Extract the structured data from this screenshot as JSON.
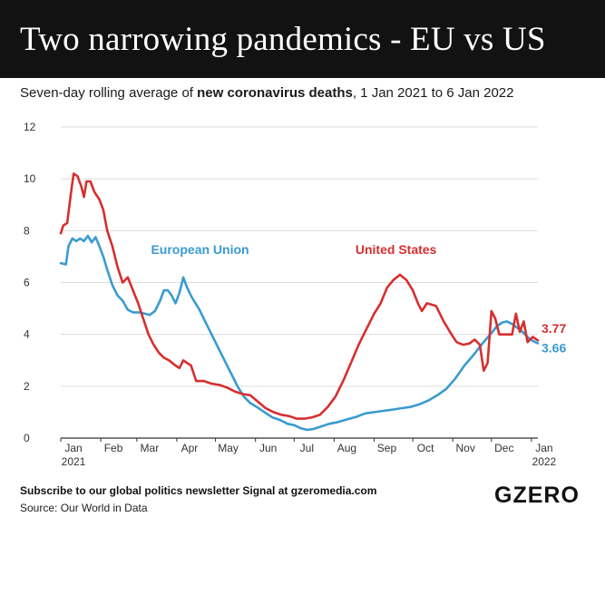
{
  "header": {
    "title": "Two narrowing pandemics - EU vs US"
  },
  "subtitle": {
    "prefix": "Seven-day rolling average of ",
    "bold": "new coronavirus deaths",
    "suffix": ", 1 Jan 2021 to 6 Jan 2022"
  },
  "footer": {
    "note": "Subscribe to our global politics newsletter Signal at gzeromedia.com",
    "source": "Source: Our World in Data",
    "logo": "GZERO"
  },
  "colors": {
    "eu": "#3a9bd0",
    "us": "#d62f2f",
    "grid": "#dcdcdc",
    "axis": "#333333"
  },
  "chart_data": {
    "type": "line",
    "title": "Two narrowing pandemics - EU vs US",
    "xlabel": "",
    "ylabel": "",
    "xlim": [
      "2021-01-01",
      "2022-01-06"
    ],
    "ylim": [
      0,
      12
    ],
    "yticks": [
      0,
      2,
      4,
      6,
      8,
      10,
      12
    ],
    "xticks": [
      {
        "date": "2021-01-01",
        "label": "Jan",
        "sublabel": "2021"
      },
      {
        "date": "2021-02-01",
        "label": "Feb"
      },
      {
        "date": "2021-03-01",
        "label": "Mar"
      },
      {
        "date": "2021-04-01",
        "label": "Apr"
      },
      {
        "date": "2021-05-01",
        "label": "May"
      },
      {
        "date": "2021-06-01",
        "label": "Jun"
      },
      {
        "date": "2021-07-01",
        "label": "Jul"
      },
      {
        "date": "2021-08-01",
        "label": "Aug"
      },
      {
        "date": "2021-09-01",
        "label": "Sep"
      },
      {
        "date": "2021-10-01",
        "label": "Oct"
      },
      {
        "date": "2021-11-01",
        "label": "Nov"
      },
      {
        "date": "2021-12-01",
        "label": "Dec"
      },
      {
        "date": "2022-01-01",
        "label": "Jan",
        "sublabel": "2022"
      }
    ],
    "grid": true,
    "series": [
      {
        "name": "European Union",
        "color": "#3a9bd0",
        "end_label": "3.66",
        "points": [
          [
            "2021-01-01",
            6.75
          ],
          [
            "2021-01-05",
            6.7
          ],
          [
            "2021-01-07",
            7.4
          ],
          [
            "2021-01-10",
            7.7
          ],
          [
            "2021-01-13",
            7.6
          ],
          [
            "2021-01-16",
            7.7
          ],
          [
            "2021-01-19",
            7.6
          ],
          [
            "2021-01-22",
            7.8
          ],
          [
            "2021-01-25",
            7.55
          ],
          [
            "2021-01-28",
            7.75
          ],
          [
            "2021-01-31",
            7.4
          ],
          [
            "2021-02-03",
            7.0
          ],
          [
            "2021-02-06",
            6.5
          ],
          [
            "2021-02-10",
            5.9
          ],
          [
            "2021-02-14",
            5.5
          ],
          [
            "2021-02-18",
            5.3
          ],
          [
            "2021-02-22",
            4.95
          ],
          [
            "2021-02-26",
            4.85
          ],
          [
            "2021-03-03",
            4.85
          ],
          [
            "2021-03-07",
            4.8
          ],
          [
            "2021-03-11",
            4.75
          ],
          [
            "2021-03-15",
            4.9
          ],
          [
            "2021-03-19",
            5.3
          ],
          [
            "2021-03-22",
            5.7
          ],
          [
            "2021-03-25",
            5.7
          ],
          [
            "2021-03-28",
            5.5
          ],
          [
            "2021-03-31",
            5.2
          ],
          [
            "2021-04-03",
            5.6
          ],
          [
            "2021-04-06",
            6.2
          ],
          [
            "2021-04-09",
            5.8
          ],
          [
            "2021-04-13",
            5.4
          ],
          [
            "2021-04-18",
            5.0
          ],
          [
            "2021-04-23",
            4.5
          ],
          [
            "2021-04-28",
            4.0
          ],
          [
            "2021-05-03",
            3.5
          ],
          [
            "2021-05-08",
            3.0
          ],
          [
            "2021-05-13",
            2.5
          ],
          [
            "2021-05-18",
            2.0
          ],
          [
            "2021-05-23",
            1.6
          ],
          [
            "2021-05-28",
            1.35
          ],
          [
            "2021-06-02",
            1.2
          ],
          [
            "2021-06-08",
            1.0
          ],
          [
            "2021-06-14",
            0.8
          ],
          [
            "2021-06-20",
            0.7
          ],
          [
            "2021-06-26",
            0.55
          ],
          [
            "2021-07-01",
            0.5
          ],
          [
            "2021-07-06",
            0.38
          ],
          [
            "2021-07-11",
            0.32
          ],
          [
            "2021-07-16",
            0.35
          ],
          [
            "2021-07-22",
            0.45
          ],
          [
            "2021-07-28",
            0.55
          ],
          [
            "2021-08-04",
            0.62
          ],
          [
            "2021-08-11",
            0.72
          ],
          [
            "2021-08-18",
            0.82
          ],
          [
            "2021-08-25",
            0.95
          ],
          [
            "2021-09-01",
            1.0
          ],
          [
            "2021-09-08",
            1.05
          ],
          [
            "2021-09-15",
            1.1
          ],
          [
            "2021-09-22",
            1.15
          ],
          [
            "2021-09-29",
            1.2
          ],
          [
            "2021-10-06",
            1.3
          ],
          [
            "2021-10-13",
            1.45
          ],
          [
            "2021-10-20",
            1.65
          ],
          [
            "2021-10-27",
            1.9
          ],
          [
            "2021-11-03",
            2.3
          ],
          [
            "2021-11-10",
            2.8
          ],
          [
            "2021-11-17",
            3.2
          ],
          [
            "2021-11-24",
            3.65
          ],
          [
            "2021-12-01",
            4.05
          ],
          [
            "2021-12-05",
            4.3
          ],
          [
            "2021-12-09",
            4.45
          ],
          [
            "2021-12-13",
            4.5
          ],
          [
            "2021-12-17",
            4.4
          ],
          [
            "2021-12-21",
            4.25
          ],
          [
            "2021-12-25",
            4.1
          ],
          [
            "2021-12-29",
            3.9
          ],
          [
            "2022-01-02",
            3.75
          ],
          [
            "2022-01-06",
            3.66
          ]
        ]
      },
      {
        "name": "United States",
        "color": "#d62f2f",
        "end_label": "3.77",
        "points": [
          [
            "2021-01-01",
            7.9
          ],
          [
            "2021-01-03",
            8.2
          ],
          [
            "2021-01-06",
            8.3
          ],
          [
            "2021-01-09",
            9.5
          ],
          [
            "2021-01-11",
            10.2
          ],
          [
            "2021-01-14",
            10.1
          ],
          [
            "2021-01-17",
            9.7
          ],
          [
            "2021-01-19",
            9.3
          ],
          [
            "2021-01-21",
            9.9
          ],
          [
            "2021-01-24",
            9.9
          ],
          [
            "2021-01-27",
            9.5
          ],
          [
            "2021-01-31",
            9.2
          ],
          [
            "2021-02-03",
            8.8
          ],
          [
            "2021-02-06",
            8.0
          ],
          [
            "2021-02-10",
            7.4
          ],
          [
            "2021-02-14",
            6.6
          ],
          [
            "2021-02-18",
            6.0
          ],
          [
            "2021-02-22",
            6.2
          ],
          [
            "2021-02-26",
            5.7
          ],
          [
            "2021-03-02",
            5.2
          ],
          [
            "2021-03-06",
            4.6
          ],
          [
            "2021-03-10",
            4.0
          ],
          [
            "2021-03-14",
            3.6
          ],
          [
            "2021-03-18",
            3.3
          ],
          [
            "2021-03-22",
            3.1
          ],
          [
            "2021-03-26",
            3.0
          ],
          [
            "2021-03-31",
            2.8
          ],
          [
            "2021-04-03",
            2.7
          ],
          [
            "2021-04-06",
            3.0
          ],
          [
            "2021-04-12",
            2.8
          ],
          [
            "2021-04-16",
            2.2
          ],
          [
            "2021-04-22",
            2.2
          ],
          [
            "2021-04-28",
            2.1
          ],
          [
            "2021-05-04",
            2.05
          ],
          [
            "2021-05-10",
            1.95
          ],
          [
            "2021-05-16",
            1.8
          ],
          [
            "2021-05-22",
            1.7
          ],
          [
            "2021-05-28",
            1.65
          ],
          [
            "2021-06-03",
            1.4
          ],
          [
            "2021-06-09",
            1.15
          ],
          [
            "2021-06-15",
            1.0
          ],
          [
            "2021-06-21",
            0.9
          ],
          [
            "2021-06-27",
            0.85
          ],
          [
            "2021-07-03",
            0.75
          ],
          [
            "2021-07-09",
            0.75
          ],
          [
            "2021-07-15",
            0.8
          ],
          [
            "2021-07-21",
            0.9
          ],
          [
            "2021-07-27",
            1.2
          ],
          [
            "2021-08-02",
            1.6
          ],
          [
            "2021-08-08",
            2.2
          ],
          [
            "2021-08-14",
            2.9
          ],
          [
            "2021-08-20",
            3.6
          ],
          [
            "2021-08-26",
            4.2
          ],
          [
            "2021-09-01",
            4.8
          ],
          [
            "2021-09-06",
            5.2
          ],
          [
            "2021-09-11",
            5.8
          ],
          [
            "2021-09-16",
            6.1
          ],
          [
            "2021-09-21",
            6.3
          ],
          [
            "2021-09-26",
            6.1
          ],
          [
            "2021-10-01",
            5.7
          ],
          [
            "2021-10-05",
            5.2
          ],
          [
            "2021-10-08",
            4.9
          ],
          [
            "2021-10-12",
            5.2
          ],
          [
            "2021-10-19",
            5.1
          ],
          [
            "2021-10-25",
            4.5
          ],
          [
            "2021-10-31",
            4.0
          ],
          [
            "2021-11-04",
            3.7
          ],
          [
            "2021-11-09",
            3.6
          ],
          [
            "2021-11-14",
            3.65
          ],
          [
            "2021-11-18",
            3.8
          ],
          [
            "2021-11-22",
            3.6
          ],
          [
            "2021-11-25",
            2.6
          ],
          [
            "2021-11-28",
            2.9
          ],
          [
            "2021-12-01",
            4.9
          ],
          [
            "2021-12-04",
            4.6
          ],
          [
            "2021-12-07",
            4.0
          ],
          [
            "2021-12-12",
            4.0
          ],
          [
            "2021-12-17",
            4.0
          ],
          [
            "2021-12-20",
            4.8
          ],
          [
            "2021-12-23",
            4.1
          ],
          [
            "2021-12-26",
            4.5
          ],
          [
            "2021-12-29",
            3.7
          ],
          [
            "2022-01-02",
            3.9
          ],
          [
            "2022-01-06",
            3.77
          ]
        ]
      }
    ]
  }
}
